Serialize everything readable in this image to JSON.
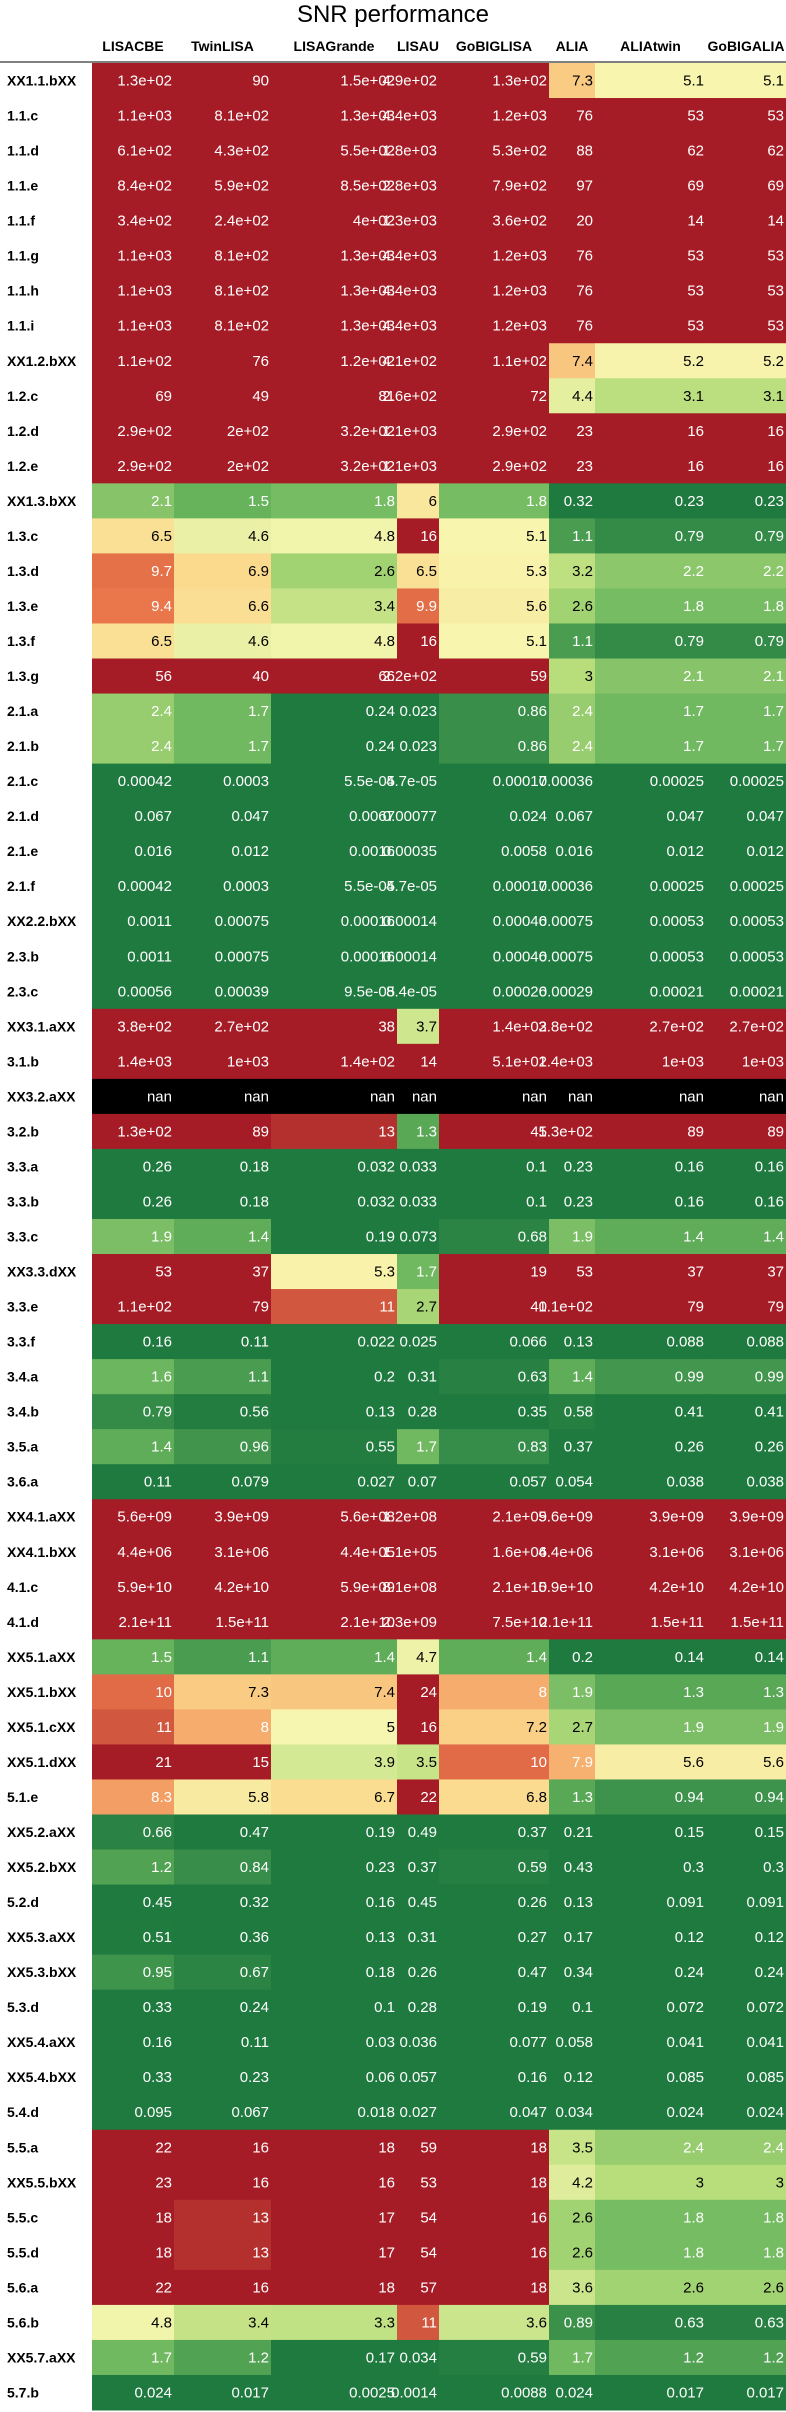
{
  "chart_data": {
    "type": "heatmap",
    "title": "SNR performance",
    "columns": [
      "LISACBE",
      "TwinLISA",
      "LISAGrande",
      "LISAU",
      "GoBIGLISA",
      "ALIA",
      "ALIAtwin",
      "GoBIGALIA"
    ],
    "rows": [
      "XX1.1.bXX",
      "1.1.c",
      "1.1.d",
      "1.1.e",
      "1.1.f",
      "1.1.g",
      "1.1.h",
      "1.1.i",
      "XX1.2.bXX",
      "1.2.c",
      "1.2.d",
      "1.2.e",
      "XX1.3.bXX",
      "1.3.c",
      "1.3.d",
      "1.3.e",
      "1.3.f",
      "1.3.g",
      "2.1.a",
      "2.1.b",
      "2.1.c",
      "2.1.d",
      "2.1.e",
      "2.1.f",
      "XX2.2.bXX",
      "2.3.b",
      "2.3.c",
      "XX3.1.aXX",
      "3.1.b",
      "XX3.2.aXX",
      "3.2.b",
      "3.3.a",
      "3.3.b",
      "3.3.c",
      "XX3.3.dXX",
      "3.3.e",
      "3.3.f",
      "3.4.a",
      "3.4.b",
      "3.5.a",
      "3.6.a",
      "XX4.1.aXX",
      "XX4.1.bXX",
      "4.1.c",
      "4.1.d",
      "XX5.1.aXX",
      "XX5.1.bXX",
      "XX5.1.cXX",
      "XX5.1.dXX",
      "5.1.e",
      "XX5.2.aXX",
      "XX5.2.bXX",
      "5.2.d",
      "XX5.3.aXX",
      "XX5.3.bXX",
      "5.3.d",
      "XX5.4.aXX",
      "XX5.4.bXX",
      "5.4.d",
      "5.5.a",
      "XX5.5.bXX",
      "5.5.c",
      "5.5.d",
      "5.6.a",
      "5.6.b",
      "XX5.7.aXX",
      "5.7.b"
    ],
    "cells": [
      [
        "1.3e+02",
        "90",
        "1.5e+02",
        "4.9e+02",
        "1.3e+02",
        "7.3",
        "5.1",
        "5.1"
      ],
      [
        "1.1e+03",
        "8.1e+02",
        "1.3e+03",
        "4.4e+03",
        "1.2e+03",
        "76",
        "53",
        "53"
      ],
      [
        "6.1e+02",
        "4.3e+02",
        "5.5e+02",
        "1.8e+03",
        "5.3e+02",
        "88",
        "62",
        "62"
      ],
      [
        "8.4e+02",
        "5.9e+02",
        "8.5e+02",
        "2.8e+03",
        "7.9e+02",
        "97",
        "69",
        "69"
      ],
      [
        "3.4e+02",
        "2.4e+02",
        "4e+02",
        "1.3e+03",
        "3.6e+02",
        "20",
        "14",
        "14"
      ],
      [
        "1.1e+03",
        "8.1e+02",
        "1.3e+03",
        "4.4e+03",
        "1.2e+03",
        "76",
        "53",
        "53"
      ],
      [
        "1.1e+03",
        "8.1e+02",
        "1.3e+03",
        "4.4e+03",
        "1.2e+03",
        "76",
        "53",
        "53"
      ],
      [
        "1.1e+03",
        "8.1e+02",
        "1.3e+03",
        "4.4e+03",
        "1.2e+03",
        "76",
        "53",
        "53"
      ],
      [
        "1.1e+02",
        "76",
        "1.2e+02",
        "4.1e+02",
        "1.1e+02",
        "7.4",
        "5.2",
        "5.2"
      ],
      [
        "69",
        "49",
        "81",
        "2.6e+02",
        "72",
        "4.4",
        "3.1",
        "3.1"
      ],
      [
        "2.9e+02",
        "2e+02",
        "3.2e+02",
        "1.1e+03",
        "2.9e+02",
        "23",
        "16",
        "16"
      ],
      [
        "2.9e+02",
        "2e+02",
        "3.2e+02",
        "1.1e+03",
        "2.9e+02",
        "23",
        "16",
        "16"
      ],
      [
        "2.1",
        "1.5",
        "1.8",
        "6",
        "1.8",
        "0.32",
        "0.23",
        "0.23"
      ],
      [
        "6.5",
        "4.6",
        "4.8",
        "16",
        "5.1",
        "1.1",
        "0.79",
        "0.79"
      ],
      [
        "9.7",
        "6.9",
        "2.6",
        "6.5",
        "5.3",
        "3.2",
        "2.2",
        "2.2"
      ],
      [
        "9.4",
        "6.6",
        "3.4",
        "9.9",
        "5.6",
        "2.6",
        "1.8",
        "1.8"
      ],
      [
        "6.5",
        "4.6",
        "4.8",
        "16",
        "5.1",
        "1.1",
        "0.79",
        "0.79"
      ],
      [
        "56",
        "40",
        "66",
        "2.2e+02",
        "59",
        "3",
        "2.1",
        "2.1"
      ],
      [
        "2.4",
        "1.7",
        "0.24",
        "0.023",
        "0.86",
        "2.4",
        "1.7",
        "1.7"
      ],
      [
        "2.4",
        "1.7",
        "0.24",
        "0.023",
        "0.86",
        "2.4",
        "1.7",
        "1.7"
      ],
      [
        "0.00042",
        "0.0003",
        "5.5e-05",
        "4.7e-05",
        "0.00017",
        "0.00036",
        "0.00025",
        "0.00025"
      ],
      [
        "0.067",
        "0.047",
        "0.0067",
        "0.00077",
        "0.024",
        "0.067",
        "0.047",
        "0.047"
      ],
      [
        "0.016",
        "0.012",
        "0.0016",
        "0.00035",
        "0.0058",
        "0.016",
        "0.012",
        "0.012"
      ],
      [
        "0.00042",
        "0.0003",
        "5.5e-05",
        "4.7e-05",
        "0.00017",
        "0.00036",
        "0.00025",
        "0.00025"
      ],
      [
        "0.0011",
        "0.00075",
        "0.00016",
        "0.00014",
        "0.00046",
        "0.00075",
        "0.00053",
        "0.00053"
      ],
      [
        "0.0011",
        "0.00075",
        "0.00016",
        "0.00014",
        "0.00046",
        "0.00075",
        "0.00053",
        "0.00053"
      ],
      [
        "0.00056",
        "0.00039",
        "9.5e-05",
        "8.4e-05",
        "0.00026",
        "0.00029",
        "0.00021",
        "0.00021"
      ],
      [
        "3.8e+02",
        "2.7e+02",
        "38",
        "3.7",
        "1.4e+02",
        "3.8e+02",
        "2.7e+02",
        "2.7e+02"
      ],
      [
        "1.4e+03",
        "1e+03",
        "1.4e+02",
        "14",
        "5.1e+02",
        "1.4e+03",
        "1e+03",
        "1e+03"
      ],
      [
        "nan",
        "nan",
        "nan",
        "nan",
        "nan",
        "nan",
        "nan",
        "nan"
      ],
      [
        "1.3e+02",
        "89",
        "13",
        "1.3",
        "45",
        "1.3e+02",
        "89",
        "89"
      ],
      [
        "0.26",
        "0.18",
        "0.032",
        "0.033",
        "0.1",
        "0.23",
        "0.16",
        "0.16"
      ],
      [
        "0.26",
        "0.18",
        "0.032",
        "0.033",
        "0.1",
        "0.23",
        "0.16",
        "0.16"
      ],
      [
        "1.9",
        "1.4",
        "0.19",
        "0.073",
        "0.68",
        "1.9",
        "1.4",
        "1.4"
      ],
      [
        "53",
        "37",
        "5.3",
        "1.7",
        "19",
        "53",
        "37",
        "37"
      ],
      [
        "1.1e+02",
        "79",
        "11",
        "2.7",
        "40",
        "1.1e+02",
        "79",
        "79"
      ],
      [
        "0.16",
        "0.11",
        "0.022",
        "0.025",
        "0.066",
        "0.13",
        "0.088",
        "0.088"
      ],
      [
        "1.6",
        "1.1",
        "0.2",
        "0.31",
        "0.63",
        "1.4",
        "0.99",
        "0.99"
      ],
      [
        "0.79",
        "0.56",
        "0.13",
        "0.28",
        "0.35",
        "0.58",
        "0.41",
        "0.41"
      ],
      [
        "1.4",
        "0.96",
        "0.55",
        "1.7",
        "0.83",
        "0.37",
        "0.26",
        "0.26"
      ],
      [
        "0.11",
        "0.079",
        "0.027",
        "0.07",
        "0.057",
        "0.054",
        "0.038",
        "0.038"
      ],
      [
        "5.6e+09",
        "3.9e+09",
        "5.6e+08",
        "1.2e+08",
        "2.1e+09",
        "5.6e+09",
        "3.9e+09",
        "3.9e+09"
      ],
      [
        "4.4e+06",
        "3.1e+06",
        "4.4e+05",
        "1.1e+05",
        "1.6e+06",
        "4.4e+06",
        "3.1e+06",
        "3.1e+06"
      ],
      [
        "5.9e+10",
        "4.2e+10",
        "5.9e+09",
        "8.1e+08",
        "2.1e+10",
        "5.9e+10",
        "4.2e+10",
        "4.2e+10"
      ],
      [
        "2.1e+11",
        "1.5e+11",
        "2.1e+10",
        "2.3e+09",
        "7.5e+10",
        "2.1e+11",
        "1.5e+11",
        "1.5e+11"
      ],
      [
        "1.5",
        "1.1",
        "1.4",
        "4.7",
        "1.4",
        "0.2",
        "0.14",
        "0.14"
      ],
      [
        "10",
        "7.3",
        "7.4",
        "24",
        "8",
        "1.9",
        "1.3",
        "1.3"
      ],
      [
        "11",
        "8",
        "5",
        "16",
        "7.2",
        "2.7",
        "1.9",
        "1.9"
      ],
      [
        "21",
        "15",
        "3.9",
        "3.5",
        "10",
        "7.9",
        "5.6",
        "5.6"
      ],
      [
        "8.3",
        "5.8",
        "6.7",
        "22",
        "6.8",
        "1.3",
        "0.94",
        "0.94"
      ],
      [
        "0.66",
        "0.47",
        "0.19",
        "0.49",
        "0.37",
        "0.21",
        "0.15",
        "0.15"
      ],
      [
        "1.2",
        "0.84",
        "0.23",
        "0.37",
        "0.59",
        "0.43",
        "0.3",
        "0.3"
      ],
      [
        "0.45",
        "0.32",
        "0.16",
        "0.45",
        "0.26",
        "0.13",
        "0.091",
        "0.091"
      ],
      [
        "0.51",
        "0.36",
        "0.13",
        "0.31",
        "0.27",
        "0.17",
        "0.12",
        "0.12"
      ],
      [
        "0.95",
        "0.67",
        "0.18",
        "0.26",
        "0.47",
        "0.34",
        "0.24",
        "0.24"
      ],
      [
        "0.33",
        "0.24",
        "0.1",
        "0.28",
        "0.19",
        "0.1",
        "0.072",
        "0.072"
      ],
      [
        "0.16",
        "0.11",
        "0.03",
        "0.036",
        "0.077",
        "0.058",
        "0.041",
        "0.041"
      ],
      [
        "0.33",
        "0.23",
        "0.06",
        "0.057",
        "0.16",
        "0.12",
        "0.085",
        "0.085"
      ],
      [
        "0.095",
        "0.067",
        "0.018",
        "0.027",
        "0.047",
        "0.034",
        "0.024",
        "0.024"
      ],
      [
        "22",
        "16",
        "18",
        "59",
        "18",
        "3.5",
        "2.4",
        "2.4"
      ],
      [
        "23",
        "16",
        "16",
        "53",
        "18",
        "4.2",
        "3",
        "3"
      ],
      [
        "18",
        "13",
        "17",
        "54",
        "16",
        "2.6",
        "1.8",
        "1.8"
      ],
      [
        "18",
        "13",
        "17",
        "54",
        "16",
        "2.6",
        "1.8",
        "1.8"
      ],
      [
        "22",
        "16",
        "18",
        "57",
        "18",
        "3.6",
        "2.6",
        "2.6"
      ],
      [
        "4.8",
        "3.4",
        "3.3",
        "11",
        "3.6",
        "0.89",
        "0.63",
        "0.63"
      ],
      [
        "1.7",
        "1.2",
        "0.17",
        "0.034",
        "0.59",
        "1.7",
        "1.2",
        "1.2"
      ],
      [
        "0.024",
        "0.017",
        "0.0025",
        "0.0014",
        "0.0088",
        "0.024",
        "0.017",
        "0.017"
      ]
    ],
    "color_scale": {
      "nan": "#000000",
      "stops": [
        {
          "value": 0.5,
          "color": "#1f7a3f"
        },
        {
          "value": 1.5,
          "color": "#66b35c"
        },
        {
          "value": 3,
          "color": "#b8de7c"
        },
        {
          "value": 5,
          "color": "#f7f6b0"
        },
        {
          "value": 7,
          "color": "#fbd88c"
        },
        {
          "value": 9,
          "color": "#ef7f4e"
        },
        {
          "value": 14,
          "color": "#a51c26"
        }
      ],
      "dark_text_range": [
        2.5,
        7.5
      ],
      "dark_text_color": "#000000",
      "light_text_color": "#ffffff"
    }
  }
}
